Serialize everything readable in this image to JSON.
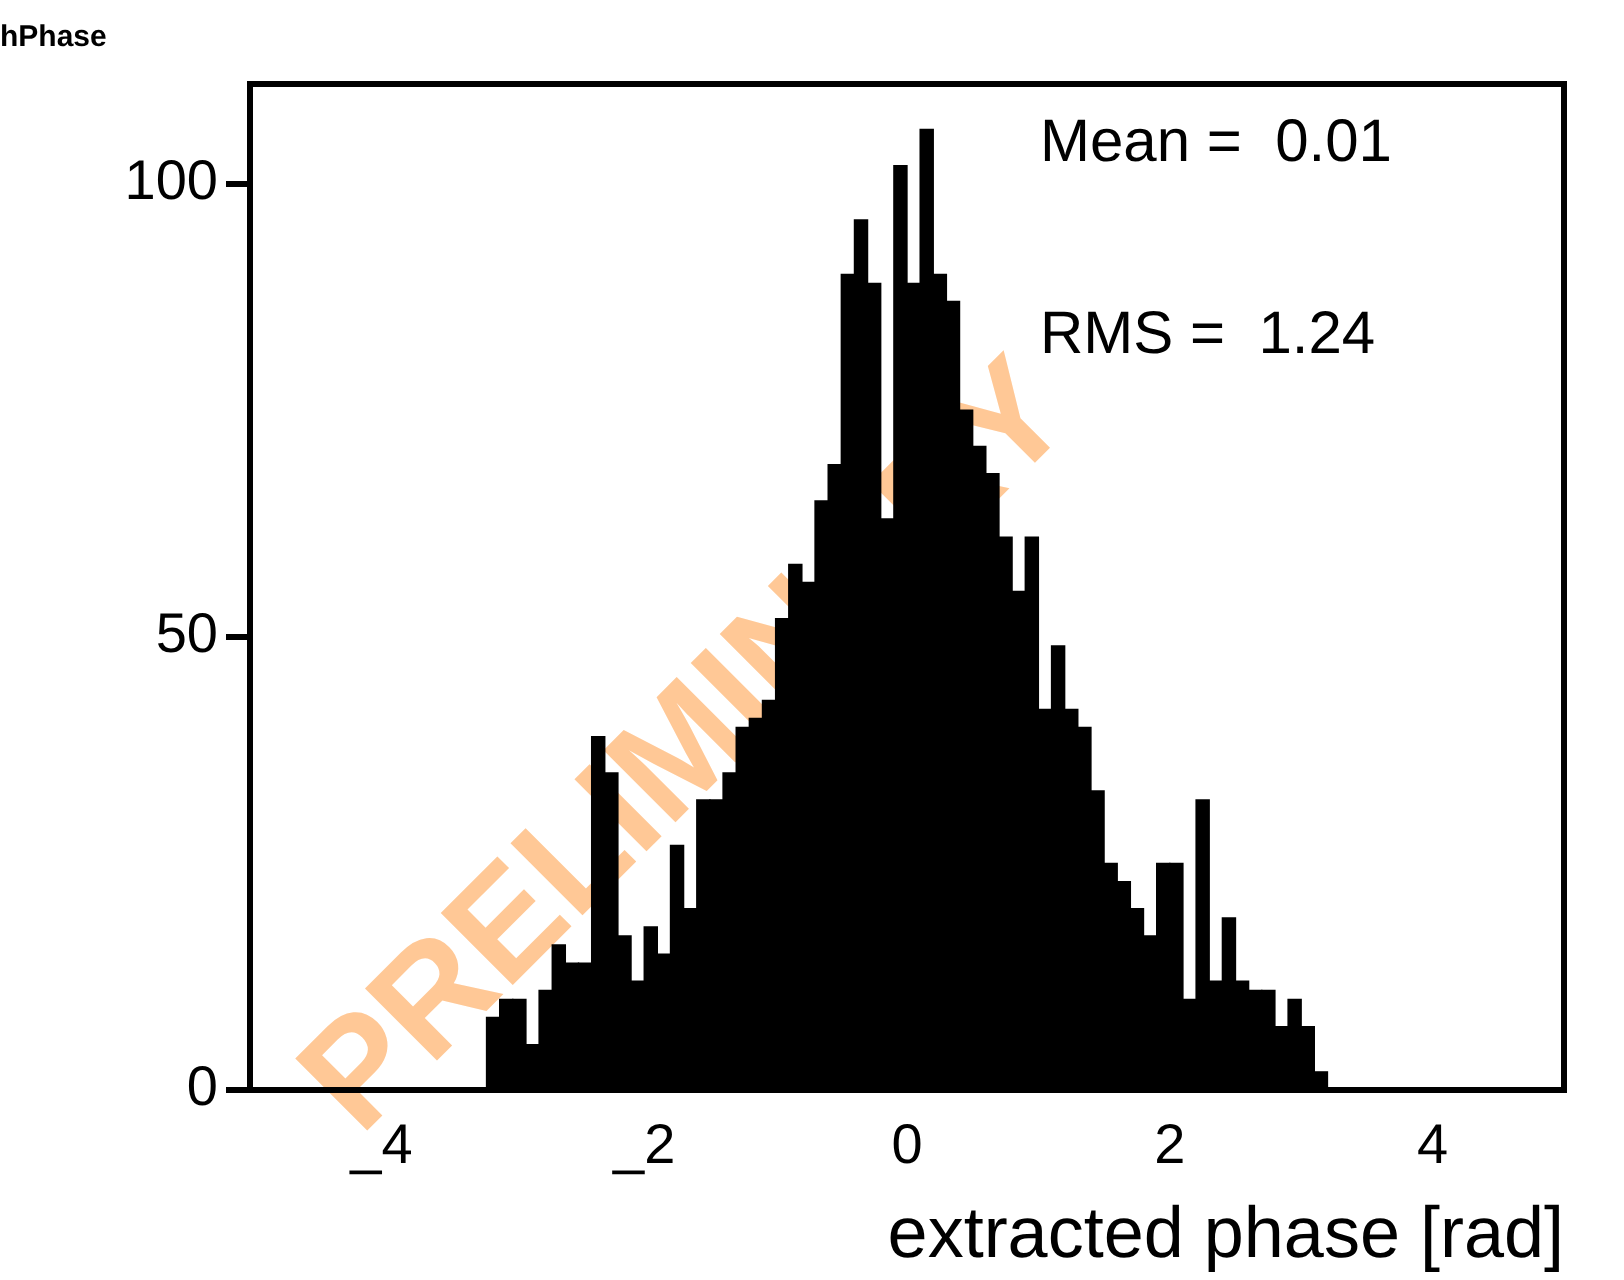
{
  "chart_data": {
    "type": "histogram",
    "title": "hPhase",
    "xlabel": "extracted phase [rad]",
    "bins": [
      -3.2,
      -3.1,
      -3.0,
      -2.9,
      -2.8,
      -2.7,
      -2.6,
      -2.5,
      -2.4,
      -2.3,
      -2.2,
      -2.1,
      -2.0,
      -1.9,
      -1.8,
      -1.7,
      -1.6,
      -1.5,
      -1.4,
      -1.3,
      -1.2,
      -1.1,
      -1.0,
      -0.9,
      -0.8,
      -0.7,
      -0.6,
      -0.5,
      -0.4,
      -0.3,
      -0.2,
      -0.1,
      0.0,
      0.1,
      0.2,
      0.3,
      0.4,
      0.5,
      0.6,
      0.7,
      0.8,
      0.9,
      1.0,
      1.1,
      1.2,
      1.3,
      1.4,
      1.5,
      1.6,
      1.7,
      1.8,
      1.9,
      2.0,
      2.1,
      2.2,
      2.3,
      2.4,
      2.5,
      2.6,
      2.7,
      2.8,
      2.9,
      3.0,
      3.1,
      3.2
    ],
    "values": [
      8,
      10,
      10,
      5,
      11,
      16,
      14,
      14,
      39,
      35,
      17,
      12,
      18,
      15,
      27,
      20,
      32,
      32,
      35,
      40,
      41,
      43,
      52,
      58,
      56,
      65,
      69,
      90,
      96,
      89,
      63,
      102,
      89,
      106,
      90,
      87,
      75,
      71,
      68,
      61,
      55,
      61,
      42,
      49,
      42,
      40,
      33,
      25,
      23,
      20,
      17,
      25,
      25,
      10,
      32,
      12,
      19,
      12,
      11,
      11,
      7,
      10,
      7,
      2
    ],
    "color": "#000000",
    "xlim": [
      -5,
      5
    ],
    "xticks": [
      {
        "value": -4,
        "label": "_4"
      },
      {
        "value": -2,
        "label": "_2"
      },
      0,
      2,
      4
    ],
    "ylim": [
      0,
      111
    ],
    "yticks": [
      0,
      50,
      100
    ],
    "grid": false,
    "legend": false,
    "annotations": [
      "Mean =  0.01",
      "RMS =  1.24",
      "PRELIMINARY"
    ]
  }
}
